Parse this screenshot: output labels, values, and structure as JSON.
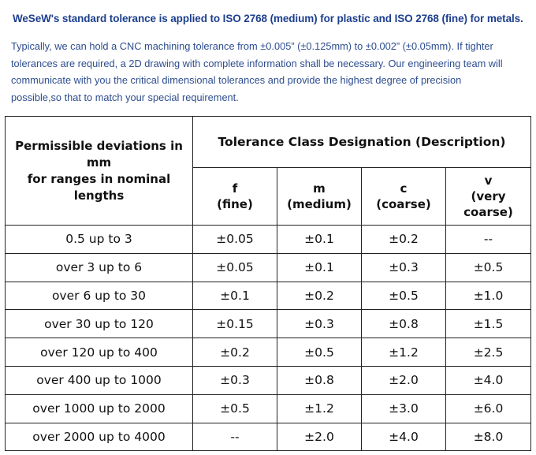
{
  "heading": "WeSeW's standard tolerance is applied to ISO 2768 (medium) for plastic and ISO 2768 (fine) for metals.",
  "intro_lines": [
    "Typically, we can hold a CNC machining tolerance from ±0.005” (±0.125mm) to ±0.002” (±0.05mm). If tighter",
    "tolerances are required, a 2D drawing with complete information shall be necessary. Our engineering team will",
    "communicate with you the critical dimensional tolerances and provide the highest degree of precision",
    "possible,so that to match your special requirement."
  ],
  "table": {
    "range_header": [
      "Permissible deviations in mm",
      "for ranges in nominal lengths"
    ],
    "class_header": "Tolerance Class Designation (Description)",
    "classes": [
      {
        "code": "f",
        "desc": "(fine)"
      },
      {
        "code": "m",
        "desc": "(medium)"
      },
      {
        "code": "c",
        "desc": "(coarse)"
      },
      {
        "code": "v",
        "desc": "(very coarse)"
      }
    ],
    "rows": [
      {
        "range": "0.5 up to 3",
        "values": [
          "±0.05",
          "±0.1",
          "±0.2",
          "--"
        ]
      },
      {
        "range": "over 3 up to 6",
        "values": [
          "±0.05",
          "±0.1",
          "±0.3",
          "±0.5"
        ]
      },
      {
        "range": "over 6 up to 30",
        "values": [
          "±0.1",
          "±0.2",
          "±0.5",
          "±1.0"
        ]
      },
      {
        "range": "over 30 up to 120",
        "values": [
          "±0.15",
          "±0.3",
          "±0.8",
          "±1.5"
        ]
      },
      {
        "range": "over 120 up to 400",
        "values": [
          "±0.2",
          "±0.5",
          "±1.2",
          "±2.5"
        ]
      },
      {
        "range": "over 400 up to 1000",
        "values": [
          "±0.3",
          "±0.8",
          "±2.0",
          "±4.0"
        ]
      },
      {
        "range": "over 1000 up to 2000",
        "values": [
          "±0.5",
          "±1.2",
          "±3.0",
          "±6.0"
        ]
      },
      {
        "range": "over 2000 up to 4000",
        "values": [
          "--",
          "±2.0",
          "±4.0",
          "±8.0"
        ]
      }
    ]
  }
}
